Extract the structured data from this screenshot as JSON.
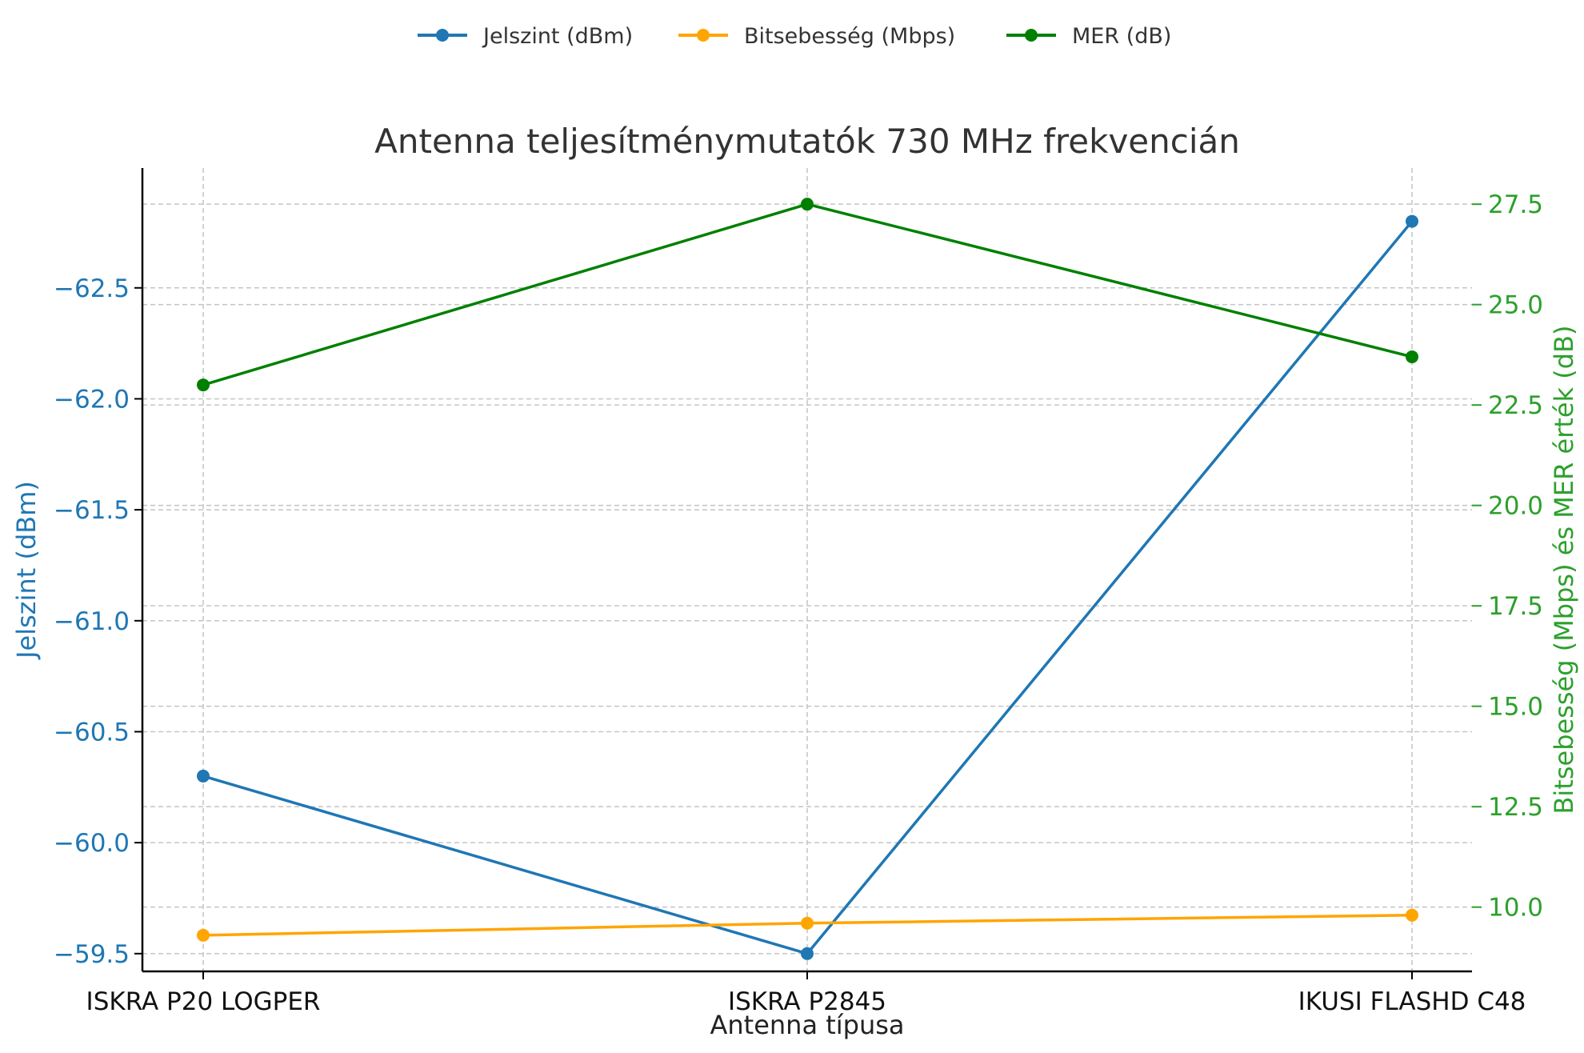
{
  "chart_data": {
    "type": "line",
    "title": "Antenna teljesítménymutatók 730 MHz frekvencián",
    "xlabel": "Antenna típusa",
    "ylabel_left": "Jelszint (dBm)",
    "ylabel_right": "Bitsebesség (Mbps) és MER érték (dB)",
    "categories": [
      "ISKRA P20 LOGPER",
      "ISKRA P2845",
      "IKUSI FLASHD C48"
    ],
    "left_axis": {
      "ylim": [
        -59.42,
        -63.04
      ],
      "inverted": true,
      "ticks": [
        -62.5,
        -62.0,
        -61.5,
        -61.0,
        -60.5,
        -60.0,
        -59.5
      ],
      "tick_labels": [
        "−62.5",
        "−62.0",
        "−61.5",
        "−61.0",
        "−60.5",
        "−60.0",
        "−59.5"
      ],
      "color": "#1f77b4"
    },
    "right_axis": {
      "ylim": [
        8.4,
        28.4
      ],
      "ticks": [
        10.0,
        12.5,
        15.0,
        17.5,
        20.0,
        22.5,
        25.0,
        27.5
      ],
      "tick_labels": [
        "10.0",
        "12.5",
        "15.0",
        "17.5",
        "20.0",
        "22.5",
        "25.0",
        "27.5"
      ],
      "color": "#2ca02c"
    },
    "series": [
      {
        "name": "Jelszint (dBm)",
        "axis": "left",
        "color": "#1f77b4",
        "values": [
          -60.3,
          -59.5,
          -62.8
        ]
      },
      {
        "name": "Bitsebesség (Mbps)",
        "axis": "right",
        "color": "#ffa500",
        "values": [
          9.3,
          9.6,
          9.8
        ]
      },
      {
        "name": "MER (dB)",
        "axis": "right",
        "color": "#008000",
        "values": [
          23.0,
          27.5,
          23.7
        ]
      }
    ],
    "grid": true,
    "legend_position": "top-center"
  }
}
